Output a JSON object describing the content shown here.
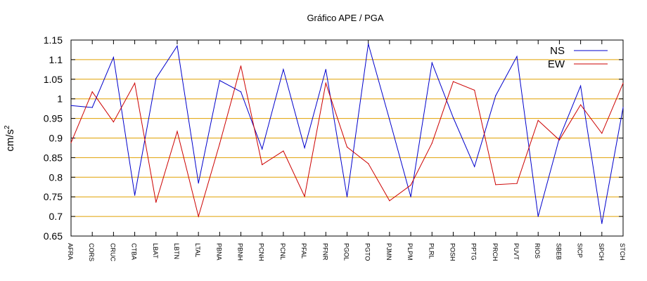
{
  "chart_data": {
    "type": "line",
    "title": "Gráfico  APE / PGA",
    "ylabel": "cm/s",
    "ylabel_superscript": "2",
    "ylim": [
      0.65,
      1.15
    ],
    "yticks": [
      "0.65",
      "0.7",
      "0.75",
      "0.8",
      "0.85",
      "0.9",
      "0.95",
      "1",
      "1.05",
      "1.1",
      "1.15"
    ],
    "grid": "horizontal",
    "grid_color": "#e0a000",
    "legend_position": "top-right",
    "categories": [
      "AFRA",
      "CORS",
      "CRUC",
      "CTBA",
      "LBAT",
      "LBTN",
      "LTAL",
      "PBNA",
      "PBNH",
      "PCNH",
      "PCNL",
      "PFAL",
      "PFNR",
      "PGOL",
      "PGTO",
      "PJMN",
      "PLPM",
      "PLRL",
      "POSH",
      "PPTG",
      "PRCH",
      "PUVT",
      "RIOS",
      "SBEB",
      "SICP",
      "SPCH",
      "STCH"
    ],
    "series": [
      {
        "name": "NS",
        "color": "#0000cc",
        "values": [
          0.983,
          0.978,
          1.106,
          0.754,
          1.052,
          1.135,
          0.785,
          1.047,
          1.018,
          0.872,
          1.075,
          0.875,
          1.075,
          0.75,
          1.14,
          0.947,
          0.75,
          1.092,
          0.952,
          0.827,
          1.008,
          1.108,
          0.7,
          0.9,
          1.033,
          0.682,
          0.978
        ]
      },
      {
        "name": "EW",
        "color": "#cc0000",
        "values": [
          0.888,
          1.018,
          0.941,
          1.04,
          0.736,
          0.917,
          0.7,
          0.885,
          1.084,
          0.832,
          0.867,
          0.751,
          1.04,
          0.877,
          0.835,
          0.74,
          0.78,
          0.887,
          1.044,
          1.022,
          0.781,
          0.784,
          0.945,
          0.895,
          0.985,
          0.912,
          1.04
        ]
      }
    ]
  }
}
